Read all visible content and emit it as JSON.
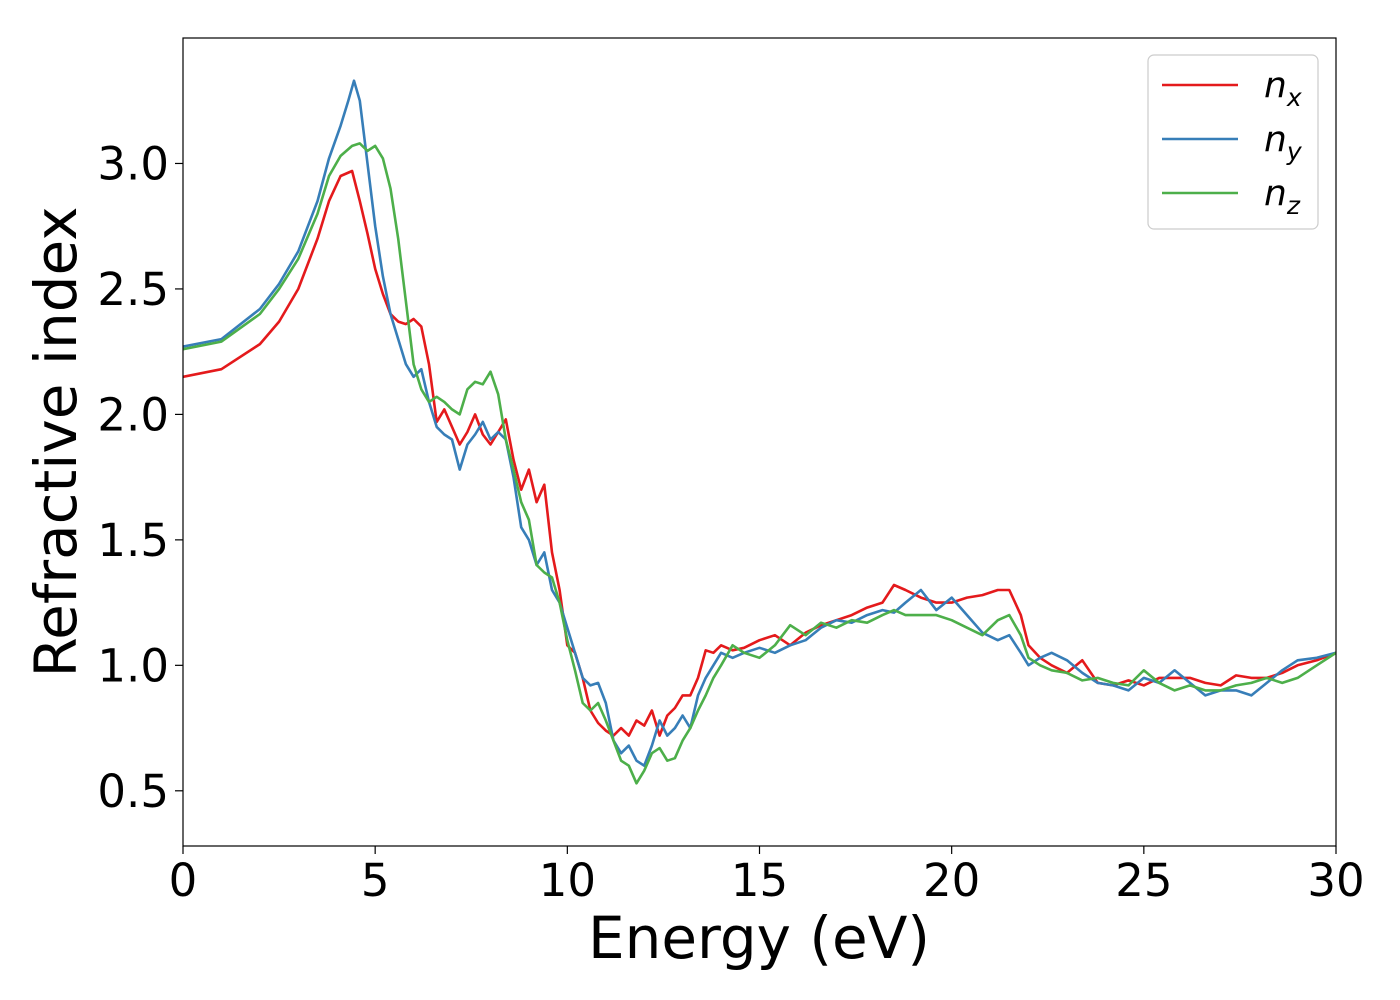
{
  "chart_data": {
    "type": "line",
    "xlabel": "Energy (eV)",
    "ylabel": "Refractive index",
    "xlim": [
      0,
      30
    ],
    "ylim": [
      0.28,
      3.5
    ],
    "xticks": [
      0,
      5,
      10,
      15,
      20,
      25,
      30
    ],
    "xtick_labels": [
      "0",
      "5",
      "10",
      "15",
      "20",
      "25",
      "30"
    ],
    "yticks": [
      0.5,
      1.0,
      1.5,
      2.0,
      2.5,
      3.0
    ],
    "ytick_labels": [
      "0.5",
      "1.0",
      "1.5",
      "2.0",
      "2.5",
      "3.0"
    ],
    "grid": false,
    "legend_position": "top-right",
    "series": [
      {
        "name": "n",
        "subscript": "x",
        "color": "#e41a1c",
        "x": [
          0,
          1,
          2,
          2.5,
          3,
          3.5,
          3.8,
          4.1,
          4.4,
          4.6,
          4.8,
          5.0,
          5.2,
          5.4,
          5.6,
          5.8,
          6.0,
          6.2,
          6.4,
          6.6,
          6.8,
          7.0,
          7.2,
          7.4,
          7.6,
          7.8,
          8.0,
          8.2,
          8.4,
          8.6,
          8.8,
          9.0,
          9.2,
          9.4,
          9.6,
          9.8,
          10.0,
          10.2,
          10.4,
          10.6,
          10.8,
          11.0,
          11.2,
          11.4,
          11.6,
          11.8,
          12.0,
          12.2,
          12.4,
          12.6,
          12.8,
          13.0,
          13.2,
          13.4,
          13.6,
          13.8,
          14.0,
          14.3,
          14.6,
          15.0,
          15.4,
          15.8,
          16.2,
          16.6,
          17.0,
          17.4,
          17.8,
          18.2,
          18.5,
          18.8,
          19.2,
          19.6,
          20.0,
          20.4,
          20.8,
          21.2,
          21.5,
          21.8,
          22.0,
          22.3,
          22.6,
          23.0,
          23.4,
          23.8,
          24.2,
          24.6,
          25.0,
          25.4,
          25.8,
          26.2,
          26.6,
          27.0,
          27.4,
          27.8,
          28.2,
          28.6,
          29.0,
          29.5,
          30.0
        ],
        "y": [
          2.15,
          2.18,
          2.28,
          2.37,
          2.5,
          2.7,
          2.85,
          2.95,
          2.97,
          2.85,
          2.72,
          2.58,
          2.48,
          2.4,
          2.37,
          2.36,
          2.38,
          2.35,
          2.2,
          1.97,
          2.02,
          1.95,
          1.88,
          1.93,
          2.0,
          1.92,
          1.88,
          1.93,
          1.98,
          1.82,
          1.7,
          1.78,
          1.65,
          1.72,
          1.45,
          1.3,
          1.08,
          1.05,
          0.95,
          0.82,
          0.77,
          0.74,
          0.72,
          0.75,
          0.72,
          0.78,
          0.76,
          0.82,
          0.72,
          0.8,
          0.83,
          0.88,
          0.88,
          0.95,
          1.06,
          1.05,
          1.08,
          1.06,
          1.07,
          1.1,
          1.12,
          1.08,
          1.13,
          1.16,
          1.18,
          1.2,
          1.23,
          1.25,
          1.32,
          1.3,
          1.27,
          1.25,
          1.25,
          1.27,
          1.28,
          1.3,
          1.3,
          1.2,
          1.08,
          1.03,
          1.0,
          0.97,
          1.02,
          0.93,
          0.92,
          0.94,
          0.92,
          0.95,
          0.95,
          0.95,
          0.93,
          0.92,
          0.96,
          0.95,
          0.95,
          0.97,
          1.0,
          1.02,
          1.05
        ]
      },
      {
        "name": "n",
        "subscript": "y",
        "color": "#377eb8",
        "x": [
          0,
          1,
          2,
          2.5,
          3,
          3.5,
          3.8,
          4.1,
          4.3,
          4.45,
          4.6,
          4.8,
          5.0,
          5.2,
          5.4,
          5.6,
          5.8,
          6.0,
          6.2,
          6.4,
          6.6,
          6.8,
          7.0,
          7.2,
          7.4,
          7.6,
          7.8,
          8.0,
          8.2,
          8.4,
          8.6,
          8.8,
          9.0,
          9.2,
          9.4,
          9.6,
          9.8,
          10.0,
          10.2,
          10.4,
          10.6,
          10.8,
          11.0,
          11.2,
          11.4,
          11.6,
          11.8,
          12.0,
          12.2,
          12.4,
          12.6,
          12.8,
          13.0,
          13.2,
          13.4,
          13.6,
          13.8,
          14.0,
          14.3,
          14.6,
          15.0,
          15.4,
          15.8,
          16.2,
          16.6,
          17.0,
          17.4,
          17.8,
          18.2,
          18.5,
          18.8,
          19.2,
          19.6,
          20.0,
          20.4,
          20.8,
          21.2,
          21.5,
          21.8,
          22.0,
          22.3,
          22.6,
          23.0,
          23.4,
          23.8,
          24.2,
          24.6,
          25.0,
          25.4,
          25.8,
          26.2,
          26.6,
          27.0,
          27.4,
          27.8,
          28.2,
          28.6,
          29.0,
          29.5,
          30.0
        ],
        "y": [
          2.27,
          2.3,
          2.42,
          2.52,
          2.65,
          2.85,
          3.02,
          3.15,
          3.25,
          3.33,
          3.25,
          3.0,
          2.75,
          2.55,
          2.4,
          2.3,
          2.2,
          2.15,
          2.18,
          2.05,
          1.95,
          1.92,
          1.9,
          1.78,
          1.88,
          1.92,
          1.97,
          1.9,
          1.93,
          1.9,
          1.75,
          1.55,
          1.5,
          1.4,
          1.45,
          1.3,
          1.25,
          1.15,
          1.05,
          0.95,
          0.92,
          0.93,
          0.85,
          0.7,
          0.65,
          0.68,
          0.62,
          0.6,
          0.68,
          0.78,
          0.72,
          0.75,
          0.8,
          0.75,
          0.88,
          0.95,
          1.0,
          1.05,
          1.03,
          1.05,
          1.07,
          1.05,
          1.08,
          1.1,
          1.15,
          1.18,
          1.17,
          1.2,
          1.22,
          1.21,
          1.25,
          1.3,
          1.22,
          1.27,
          1.2,
          1.13,
          1.1,
          1.12,
          1.05,
          1.0,
          1.03,
          1.05,
          1.02,
          0.97,
          0.93,
          0.92,
          0.9,
          0.95,
          0.93,
          0.98,
          0.93,
          0.88,
          0.9,
          0.9,
          0.88,
          0.93,
          0.98,
          1.02,
          1.03,
          1.05
        ]
      },
      {
        "name": "n",
        "subscript": "z",
        "color": "#4daf4a",
        "x": [
          0,
          1,
          2,
          2.5,
          3,
          3.5,
          3.8,
          4.1,
          4.4,
          4.6,
          4.8,
          5.0,
          5.2,
          5.4,
          5.6,
          5.8,
          6.0,
          6.2,
          6.4,
          6.6,
          6.8,
          7.0,
          7.2,
          7.4,
          7.6,
          7.8,
          8.0,
          8.2,
          8.4,
          8.6,
          8.8,
          9.0,
          9.2,
          9.4,
          9.6,
          9.8,
          10.0,
          10.2,
          10.4,
          10.6,
          10.8,
          11.0,
          11.2,
          11.4,
          11.6,
          11.8,
          12.0,
          12.2,
          12.4,
          12.6,
          12.8,
          13.0,
          13.2,
          13.4,
          13.6,
          13.8,
          14.0,
          14.3,
          14.6,
          15.0,
          15.4,
          15.8,
          16.2,
          16.6,
          17.0,
          17.4,
          17.8,
          18.2,
          18.5,
          18.8,
          19.2,
          19.6,
          20.0,
          20.4,
          20.8,
          21.2,
          21.5,
          21.8,
          22.0,
          22.3,
          22.6,
          23.0,
          23.4,
          23.8,
          24.2,
          24.6,
          25.0,
          25.4,
          25.8,
          26.2,
          26.6,
          27.0,
          27.4,
          27.8,
          28.2,
          28.6,
          29.0,
          29.5,
          30.0
        ],
        "y": [
          2.26,
          2.29,
          2.4,
          2.5,
          2.62,
          2.8,
          2.95,
          3.03,
          3.07,
          3.08,
          3.05,
          3.07,
          3.02,
          2.9,
          2.7,
          2.45,
          2.2,
          2.1,
          2.05,
          2.07,
          2.05,
          2.02,
          2.0,
          2.1,
          2.13,
          2.12,
          2.17,
          2.08,
          1.9,
          1.78,
          1.65,
          1.58,
          1.4,
          1.37,
          1.35,
          1.25,
          1.1,
          0.98,
          0.85,
          0.82,
          0.85,
          0.78,
          0.7,
          0.62,
          0.6,
          0.53,
          0.58,
          0.65,
          0.67,
          0.62,
          0.63,
          0.7,
          0.75,
          0.82,
          0.88,
          0.95,
          1.0,
          1.08,
          1.05,
          1.03,
          1.08,
          1.16,
          1.12,
          1.17,
          1.15,
          1.18,
          1.17,
          1.2,
          1.22,
          1.2,
          1.2,
          1.2,
          1.18,
          1.15,
          1.12,
          1.18,
          1.2,
          1.12,
          1.03,
          1.0,
          0.98,
          0.97,
          0.94,
          0.95,
          0.93,
          0.92,
          0.98,
          0.93,
          0.9,
          0.92,
          0.9,
          0.9,
          0.92,
          0.93,
          0.95,
          0.93,
          0.95,
          1.0,
          1.05
        ]
      }
    ]
  }
}
